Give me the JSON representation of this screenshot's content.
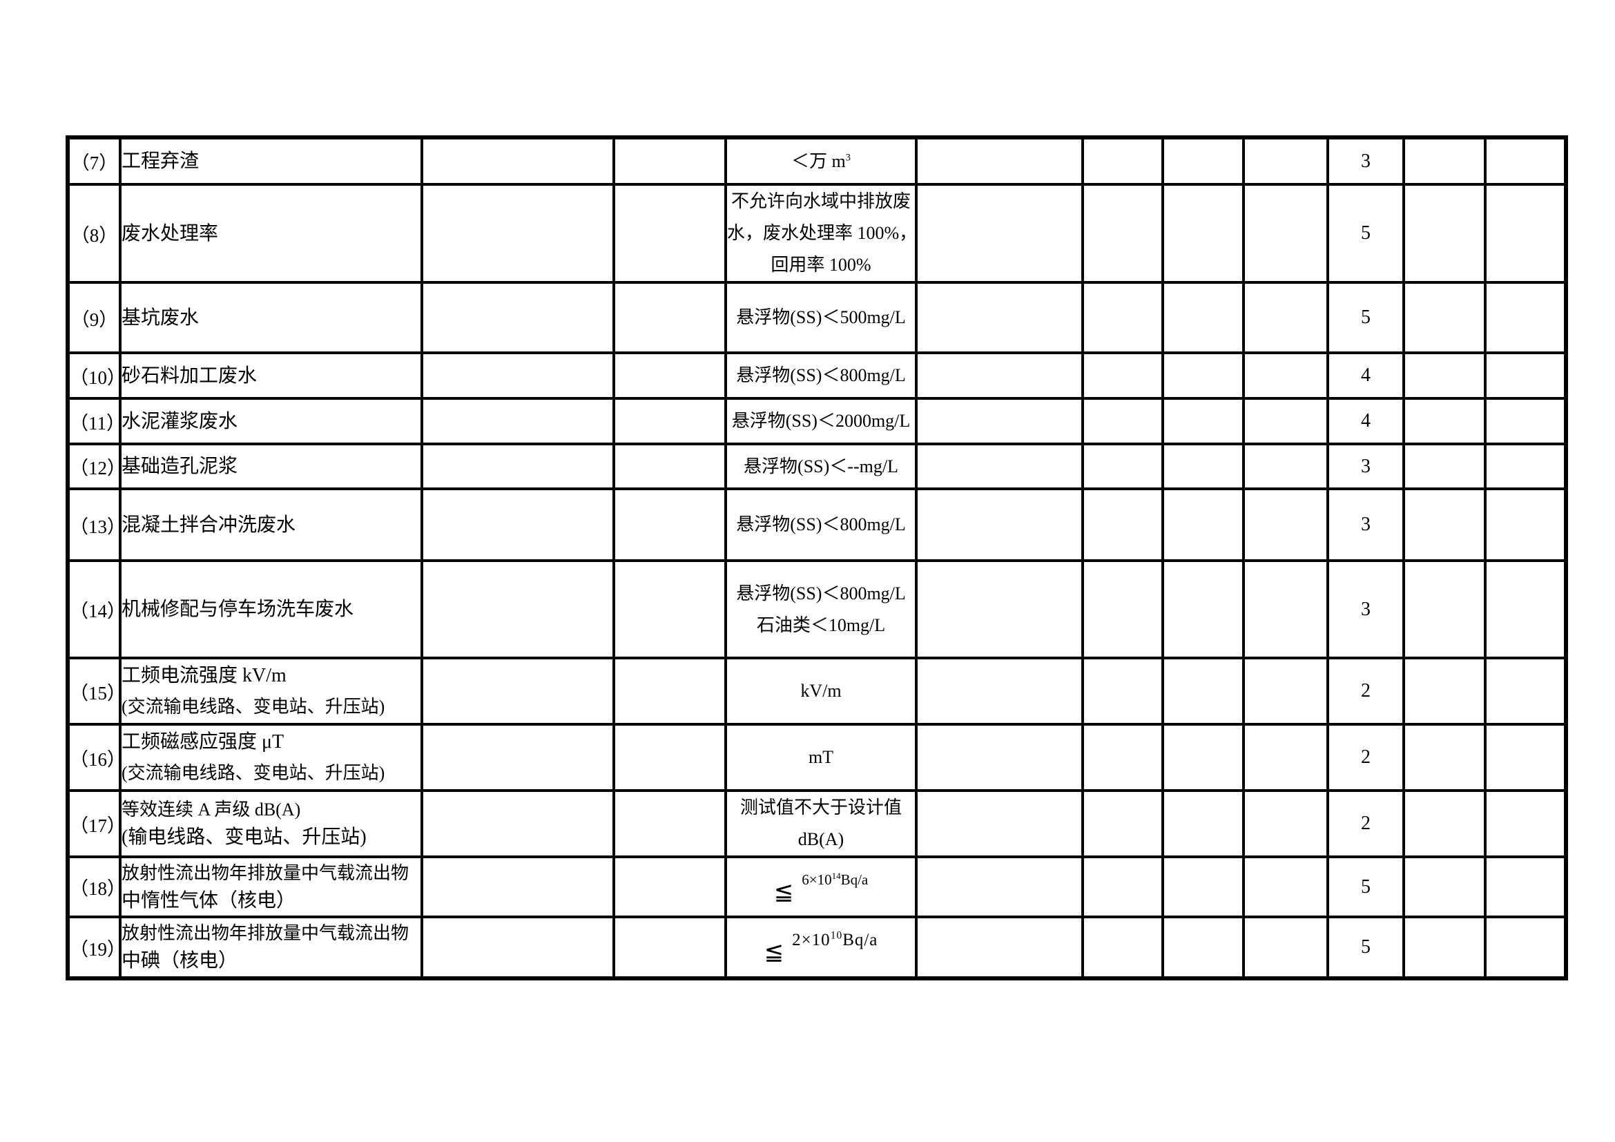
{
  "page": {
    "background": "#ffffff",
    "text_color": "#000000",
    "border_color": "#000000"
  },
  "table": {
    "columns": 12,
    "rows": [
      {
        "num": "（7）",
        "item": [
          "工程弃渣"
        ],
        "standard": {
          "lines": [
            {
              "t": "＜万 m",
              "sup": "3"
            }
          ]
        },
        "score": "3"
      },
      {
        "num": "（8）",
        "item": [
          "废水处理率"
        ],
        "standard": {
          "lines": [
            {
              "t": "不允许向水域中排放废"
            },
            {
              "t": "水，废水处理率 100%，"
            },
            {
              "t": "回用率 100%"
            }
          ]
        },
        "score": "5"
      },
      {
        "num": "（9）",
        "item": [
          "基坑废水"
        ],
        "standard": {
          "lines": [
            {
              "t": "悬浮物(SS)＜500mg/L"
            }
          ]
        },
        "score": "5"
      },
      {
        "num": "（10）",
        "item": [
          "砂石料加工废水"
        ],
        "standard": {
          "lines": [
            {
              "t": "悬浮物(SS)＜800mg/L"
            }
          ]
        },
        "score": "4"
      },
      {
        "num": "（11）",
        "item": [
          "水泥灌浆废水"
        ],
        "standard": {
          "lines": [
            {
              "t": "悬浮物(SS)＜2000mg/L"
            }
          ]
        },
        "score": "4"
      },
      {
        "num": "（12）",
        "item": [
          "基础造孔泥浆"
        ],
        "standard": {
          "lines": [
            {
              "t": "悬浮物(SS)＜--mg/L"
            }
          ]
        },
        "score": "3"
      },
      {
        "num": "（13）",
        "item": [
          "混凝土拌合冲洗废水"
        ],
        "standard": {
          "lines": [
            {
              "t": "悬浮物(SS)＜800mg/L"
            }
          ]
        },
        "score": "3"
      },
      {
        "num": "（14）",
        "item": [
          "机械修配与停车场洗车废水"
        ],
        "standard": {
          "lines": [
            {
              "t": "悬浮物(SS)＜800mg/L"
            },
            {
              "t": "石油类＜10mg/L"
            }
          ]
        },
        "score": "3"
      },
      {
        "num": "（15）",
        "item": [
          "工频电流强度 kV/m",
          "(交流输电线路、变电站、升压站)"
        ],
        "standard": {
          "lines": [
            {
              "t": "kV/m"
            }
          ]
        },
        "score": "2"
      },
      {
        "num": "（16）",
        "item": [
          "工频磁感应强度 μT",
          "(交流输电线路、变电站、升压站)"
        ],
        "standard": {
          "lines": [
            {
              "t": "mT"
            }
          ]
        },
        "score": "2"
      },
      {
        "num": "（17）",
        "item": [
          "等效连续 A 声级 dB(A)",
          "(输电线路、变电站、升压站)"
        ],
        "standard": {
          "lines": [
            {
              "t": "测试值不大于设计值"
            },
            {
              "t": "dB(A)"
            }
          ]
        },
        "score": "2"
      },
      {
        "num": "（18）",
        "item": [
          "放射性流出物年排放量中气载流出物",
          "中惰性气体（核电）"
        ],
        "standard": {
          "formula": {
            "le": "≦",
            "base": "6×10",
            "exp": "14",
            "unit": "Bq/a"
          },
          "variant": "small"
        },
        "score": "5"
      },
      {
        "num": "（19）",
        "item": [
          "放射性流出物年排放量中气载流出物",
          "中碘（核电）"
        ],
        "standard": {
          "formula": {
            "le": "≦",
            "base": "2×10",
            "exp": "10",
            "unit": "Bq/a"
          },
          "variant": "mid"
        },
        "score": "5"
      }
    ]
  }
}
